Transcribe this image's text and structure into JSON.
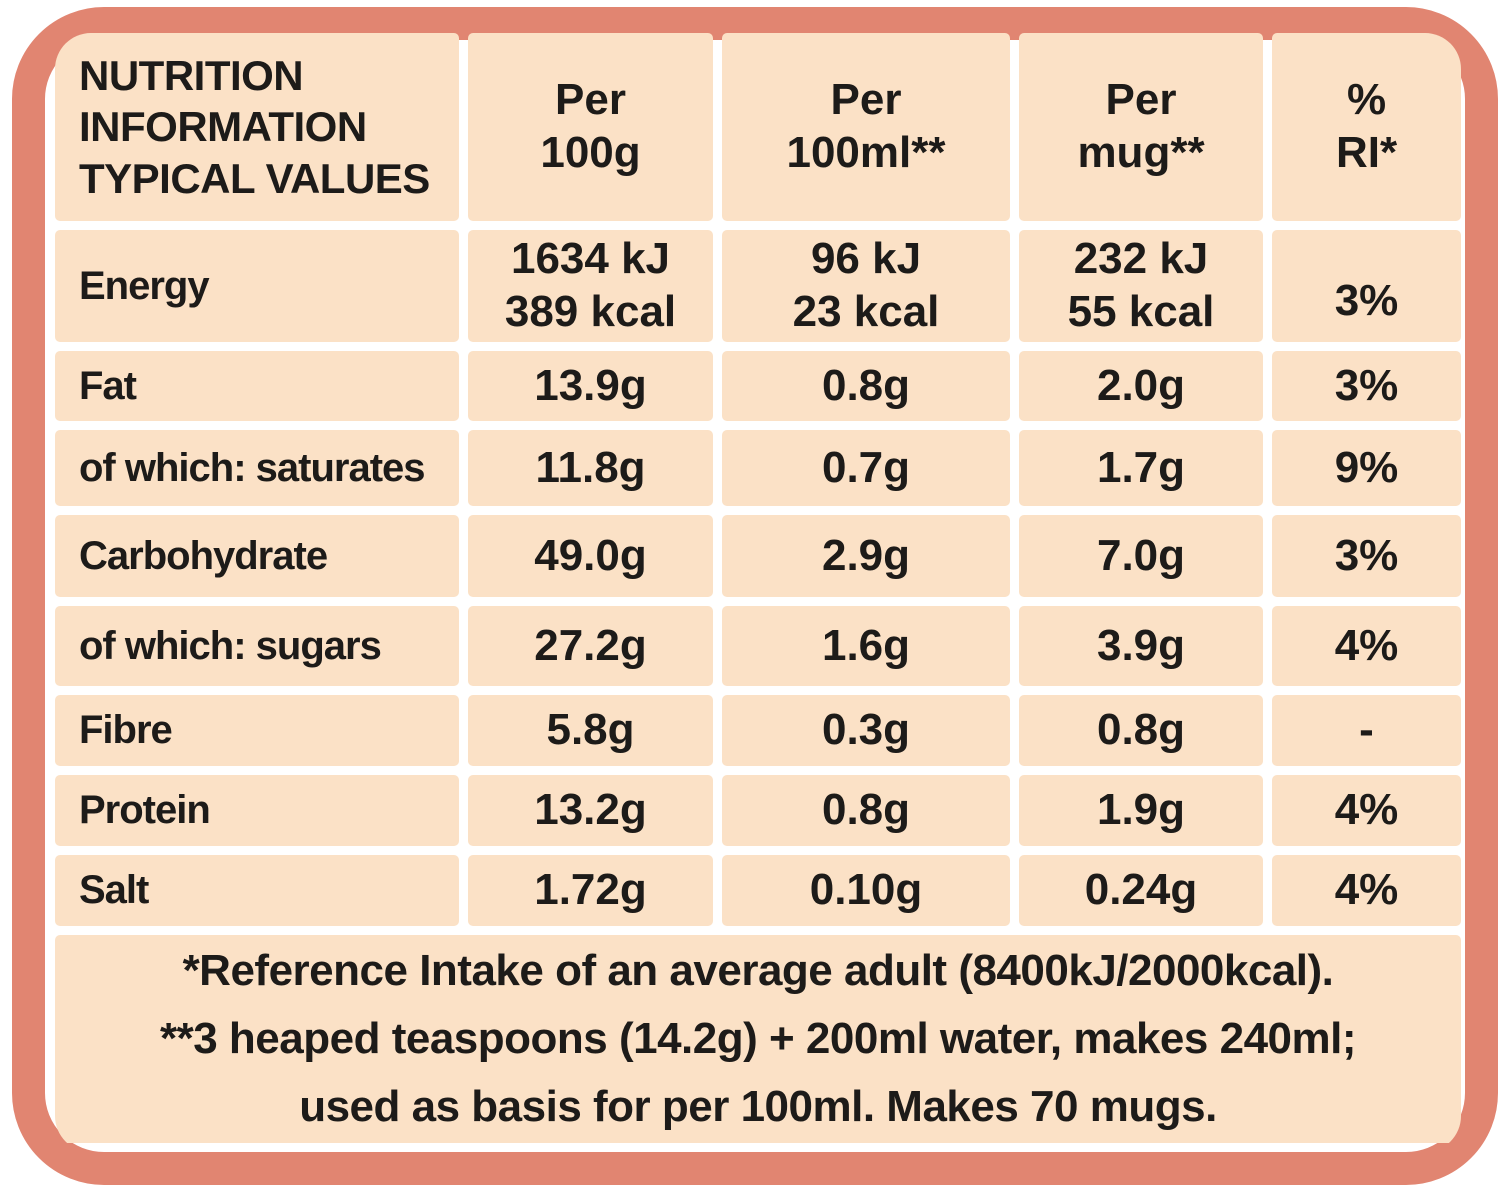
{
  "colors": {
    "frame": "#E18571",
    "cell_background": "#FBE1C6",
    "text": "#1D1B19",
    "page_background": "#FFFFFF"
  },
  "table": {
    "title": "NUTRITION\nINFORMATION\nTYPICAL VALUES",
    "columns": [
      "Per\n100g",
      "Per\n100ml**",
      "Per\nmug**",
      "%\nRI*"
    ],
    "rows": [
      {
        "label": "Energy",
        "per_100g": "1634 kJ\n389 kcal",
        "per_100ml": "96 kJ\n23 kcal",
        "per_mug": "232 kJ\n55 kcal",
        "ri": "3%"
      },
      {
        "label": "Fat",
        "per_100g": "13.9g",
        "per_100ml": "0.8g",
        "per_mug": "2.0g",
        "ri": "3%"
      },
      {
        "label": "of which: saturates",
        "per_100g": "11.8g",
        "per_100ml": "0.7g",
        "per_mug": "1.7g",
        "ri": "9%"
      },
      {
        "label": "Carbohydrate",
        "per_100g": "49.0g",
        "per_100ml": "2.9g",
        "per_mug": "7.0g",
        "ri": "3%"
      },
      {
        "label": "of which: sugars",
        "per_100g": "27.2g",
        "per_100ml": "1.6g",
        "per_mug": "3.9g",
        "ri": "4%"
      },
      {
        "label": "Fibre",
        "per_100g": "5.8g",
        "per_100ml": "0.3g",
        "per_mug": "0.8g",
        "ri": "-"
      },
      {
        "label": "Protein",
        "per_100g": "13.2g",
        "per_100ml": "0.8g",
        "per_mug": "1.9g",
        "ri": "4%"
      },
      {
        "label": "Salt",
        "per_100g": "1.72g",
        "per_100ml": "0.10g",
        "per_mug": "0.24g",
        "ri": "4%"
      }
    ],
    "footnotes": [
      "*Reference Intake of an average adult (8400kJ/2000kcal).",
      "**3 heaped teaspoons (14.2g) + 200ml water, makes 240ml;",
      "used as basis for per 100ml. Makes 70 mugs."
    ]
  }
}
